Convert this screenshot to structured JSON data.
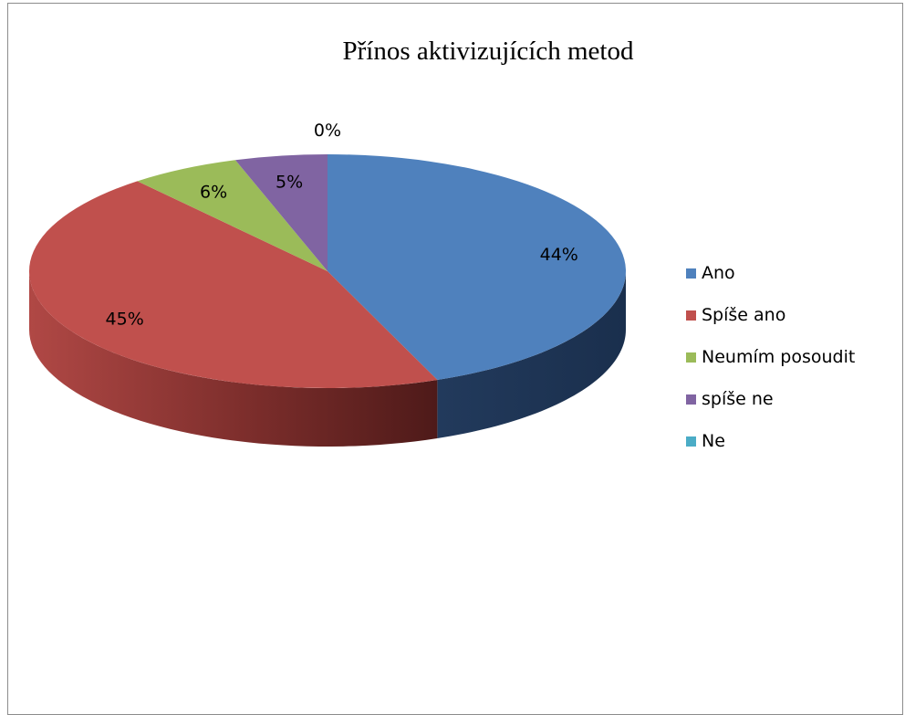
{
  "chart_data": {
    "type": "pie",
    "title": "Přínos aktivizujících metod",
    "categories": [
      "Ano",
      "Spíše ano",
      "Neumím posoudit",
      "spíše ne",
      "Ne"
    ],
    "values": [
      44,
      45,
      6,
      5,
      0
    ],
    "data_labels": [
      "44%",
      "45%",
      "6%",
      "5%",
      "0%"
    ],
    "colors": [
      "#4f81bd",
      "#c0504d",
      "#9bbb59",
      "#8064a2",
      "#4bacc6"
    ],
    "style": "3d",
    "legend_position": "right"
  }
}
